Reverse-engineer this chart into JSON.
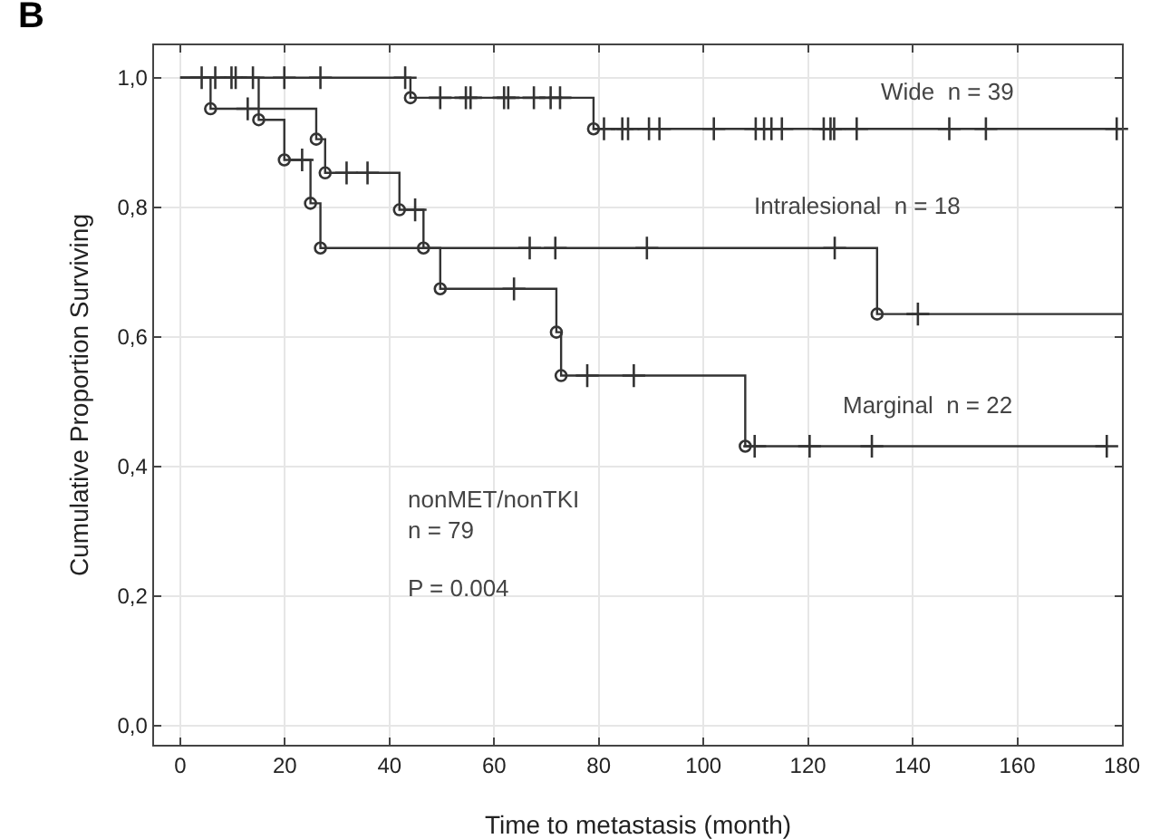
{
  "chart_data": {
    "type": "step",
    "xlabel": "Time to metastasis (month)",
    "ylabel": "Cumulative Proportion Surviving",
    "annotations": [
      "B",
      "nonMET/nonTKI\nn = 79",
      "P = 0.004"
    ],
    "xlim": [
      -5,
      180
    ],
    "xticks": [
      0,
      20,
      40,
      60,
      80,
      100,
      120,
      140,
      160,
      180
    ],
    "ylim": [
      -0.03,
      1.05
    ],
    "yticks": [
      {
        "value": 0,
        "label": "0,0"
      },
      {
        "value": 0.2,
        "label": "0,2"
      },
      {
        "value": 0.4,
        "label": "0,4"
      },
      {
        "value": 0.6,
        "label": "0,6"
      },
      {
        "value": 0.8,
        "label": "0,8"
      },
      {
        "value": 1,
        "label": "1,0"
      }
    ],
    "grid": true,
    "line_style": "solid",
    "series": [
      {
        "name": "Wide  n = 39",
        "color": "#333333",
        "marker": "none",
        "x": [
          0,
          44,
          79,
          180
        ],
        "values": [
          1.0,
          0.969,
          0.921,
          0.921
        ]
      },
      {
        "name": "Intralesional  n = 18",
        "color": "#333333",
        "marker": "none",
        "x": [
          0,
          15,
          19.9,
          24.9,
          26.8,
          133.2,
          180
        ],
        "values": [
          1.0,
          0.935,
          0.873,
          0.806,
          0.737,
          0.635,
          0.635
        ]
      },
      {
        "name": "Marginal  n = 22",
        "color": "#333333",
        "marker": "none",
        "x": [
          0,
          5.8,
          26,
          27.7,
          41.9,
          46.5,
          49.7,
          71.9,
          72.8,
          108,
          177
        ],
        "values": [
          1.0,
          0.952,
          0.905,
          0.853,
          0.796,
          0.737,
          0.674,
          0.607,
          0.54,
          0.431,
          0.431
        ]
      },
      {
        "type": "scatter",
        "color": "#333333",
        "marker": "circle",
        "x": [
          44,
          79,
          15,
          19.9,
          24.9,
          26.8,
          133.2,
          5.8,
          26,
          27.7,
          41.9,
          46.5,
          49.7,
          71.9,
          72.8,
          108
        ],
        "values": [
          0.969,
          0.921,
          0.935,
          0.873,
          0.806,
          0.737,
          0.635,
          0.952,
          0.905,
          0.853,
          0.796,
          0.737,
          0.674,
          0.607,
          0.54,
          0.431
        ]
      },
      {
        "type": "scatter",
        "color": "#333333",
        "marker": "cross",
        "x": [
          4.1,
          6.7,
          9.8,
          10.6,
          13.9,
          19.9,
          26.8,
          43,
          49.7,
          54.6,
          55.5,
          61.9,
          62.7,
          67.6,
          70.8,
          72.6,
          81,
          84.5,
          85.6,
          89.6,
          91.6,
          102,
          110,
          111.6,
          113,
          115,
          123,
          124.3,
          125,
          129.3,
          147,
          154,
          179
        ],
        "values": [
          1,
          1,
          1,
          1,
          1,
          1,
          1,
          1,
          0.969,
          0.969,
          0.969,
          0.969,
          0.969,
          0.969,
          0.969,
          0.969,
          0.921,
          0.921,
          0.921,
          0.921,
          0.921,
          0.921,
          0.921,
          0.921,
          0.921,
          0.921,
          0.921,
          0.921,
          0.921,
          0.921,
          0.921,
          0.921,
          0.921
        ]
      },
      {
        "type": "scatter",
        "color": "#333333",
        "marker": "cross",
        "x": [
          23.3,
          66.8,
          71.7,
          89.2,
          125.1,
          141
        ],
        "values": [
          0.873,
          0.737,
          0.737,
          0.737,
          0.737,
          0.635
        ]
      },
      {
        "type": "scatter",
        "color": "#333333",
        "marker": "cross",
        "x": [
          12.9,
          31.8,
          35.8,
          44.9,
          63.8,
          77.8,
          86.7,
          109.8,
          120.3,
          132.2,
          177.1
        ],
        "values": [
          0.952,
          0.853,
          0.853,
          0.796,
          0.674,
          0.54,
          0.54,
          0.431,
          0.431,
          0.431,
          0.431
        ]
      }
    ]
  }
}
